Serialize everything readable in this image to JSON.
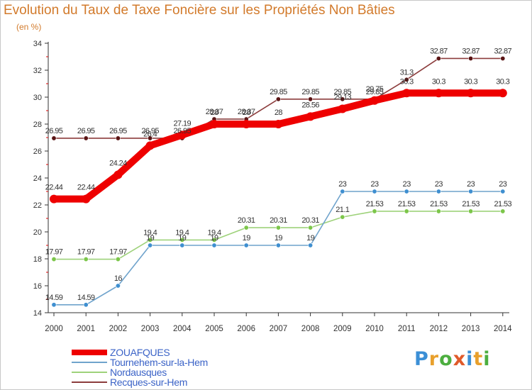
{
  "title": "Evolution du Taux de Taxe Foncière sur les Propriétés Non Bâties",
  "unit_label": "(en %)",
  "logo": {
    "letters": [
      "P",
      "r",
      "o",
      "x",
      "i",
      "t",
      "i"
    ],
    "colors": [
      "#3b8fd6",
      "#e8a02c",
      "#4cae3f",
      "#e05a2a",
      "#3b8fd6",
      "#e8a02c",
      "#4cae3f"
    ]
  },
  "colors": {
    "title": "#d27a2b",
    "axis": "#333333",
    "grid_tick": "#dd0000"
  },
  "chart_data": {
    "type": "line",
    "title": "Evolution du Taux de Taxe Foncière sur les Propriétés Non Bâties",
    "ylabel": "(en %)",
    "xlabel": "",
    "x": [
      "2000",
      "2001",
      "2002",
      "2003",
      "2004",
      "2005",
      "2006",
      "2007",
      "2008",
      "2009",
      "2010",
      "2011",
      "2012",
      "2013",
      "2014"
    ],
    "ylim": [
      14,
      34
    ],
    "yticks": [
      14,
      16,
      18,
      20,
      22,
      24,
      26,
      28,
      30,
      32,
      34
    ],
    "legend_position": "bottom-left",
    "series": [
      {
        "name": "ZOUAFQUES",
        "color": "#ee0000",
        "marker_color": "#ee0000",
        "label_color": "#333333",
        "values": [
          22.44,
          22.44,
          24.24,
          26.4,
          27.19,
          28,
          28,
          28,
          28.56,
          29.13,
          29.75,
          30.3,
          30.3,
          30.3,
          30.3
        ],
        "labels": [
          "22.44",
          "22.44",
          "24.24",
          "26.4",
          "27.19",
          "28",
          "28",
          "28",
          "28.56",
          "29.13",
          "29.75",
          "30.3",
          "30.3",
          "30.3",
          "30.3"
        ]
      },
      {
        "name": "Tournehem-sur-la-Hem",
        "color": "#6fa3cc",
        "marker_color": "#3f8fd0",
        "label_color": "#333333",
        "values": [
          14.59,
          14.59,
          16,
          19,
          19,
          19,
          19,
          19,
          19,
          23,
          23,
          23,
          23,
          23,
          23
        ],
        "labels": [
          "14.59",
          "14.59",
          "16",
          "19",
          "19",
          "19",
          "19",
          "19",
          "19",
          "23",
          "23",
          "23",
          "23",
          "23",
          "23"
        ]
      },
      {
        "name": "Nordausques",
        "color": "#9ed27a",
        "marker_color": "#7cc64a",
        "label_color": "#333333",
        "values": [
          17.97,
          17.97,
          17.97,
          19.4,
          19.4,
          19.4,
          20.31,
          20.31,
          20.31,
          21.1,
          21.53,
          21.53,
          21.53,
          21.53,
          21.53
        ],
        "labels": [
          "17.97",
          "17.97",
          "17.97",
          "19.4",
          "19.4",
          "19.4",
          "20.31",
          "20.31",
          "20.31",
          "21.1",
          "21.53",
          "21.53",
          "21.53",
          "21.53",
          "21.53"
        ]
      },
      {
        "name": "Recques-sur-Hem",
        "color": "#8c3c3c",
        "marker_color": "#5a1414",
        "label_color": "#333333",
        "values": [
          26.95,
          26.95,
          26.95,
          26.95,
          26.95,
          28.37,
          28.37,
          29.85,
          29.85,
          29.85,
          29.85,
          31.3,
          32.87,
          32.87,
          32.87
        ],
        "labels": [
          "26.95",
          "26.95",
          "26.95",
          "26.95",
          "26.95",
          "28.37",
          "28.37",
          "29.85",
          "29.85",
          "29.85",
          "29.85",
          "31.3",
          "32.87",
          "32.87",
          "32.87"
        ]
      }
    ]
  }
}
